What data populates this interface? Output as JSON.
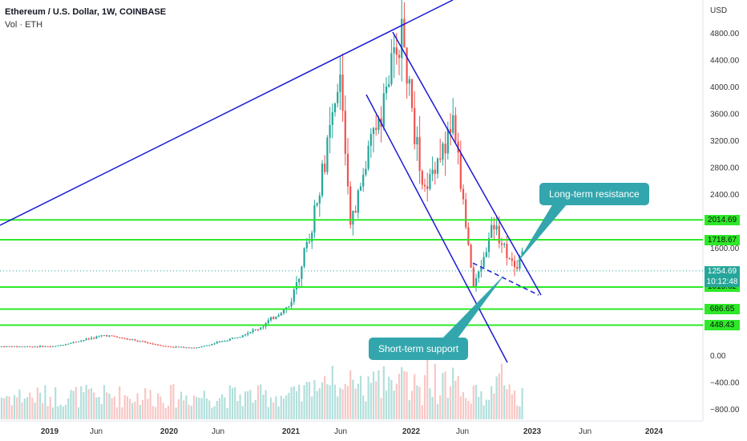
{
  "header": {
    "title": "Ethereum / U.S. Dollar, 1W, COINBASE",
    "volume_label": "Vol · ETH"
  },
  "price_scale": {
    "currency": "USD",
    "last_price": "1254.69",
    "countdown": "10:12:48"
  },
  "annotations": {
    "long_term_resistance": "Long-term resistance",
    "short_term_support": "Short-term support"
  },
  "colors": {
    "up": "#26a69a",
    "down": "#ef5350",
    "level_line": "#2ee829",
    "trendline": "#1a1ad6",
    "callout": "#33a6ad"
  },
  "chart_data": {
    "type": "candlestick",
    "title": "Ethereum / U.S. Dollar, 1W, COINBASE",
    "x_ticks": [
      "2019",
      "Jun",
      "2020",
      "Jun",
      "2021",
      "Jun",
      "2022",
      "Jun",
      "2023",
      "Jun",
      "2024"
    ],
    "y_ticks": [
      "4800.00",
      "4400.00",
      "4000.00",
      "3600.00",
      "3200.00",
      "2800.00",
      "2400.00",
      "1600.00",
      "0.00",
      "−400.00",
      "−800.00"
    ],
    "y_unit": "USD",
    "last_price": 1254.69,
    "horizontal_levels": [
      {
        "label": "2014.69",
        "value": 2014.69
      },
      {
        "label": "1718.67",
        "value": 1718.67
      },
      {
        "label": "1015.62",
        "value": 1015.62
      },
      {
        "label": "686.65",
        "value": 686.65
      },
      {
        "label": "448.43",
        "value": 448.43
      }
    ],
    "price_path": [
      {
        "date": "2019-01",
        "price": 130
      },
      {
        "date": "2019-06",
        "price": 300
      },
      {
        "date": "2019-12",
        "price": 130
      },
      {
        "date": "2020-03",
        "price": 110
      },
      {
        "date": "2020-06",
        "price": 230
      },
      {
        "date": "2020-09",
        "price": 400
      },
      {
        "date": "2020-12",
        "price": 740
      },
      {
        "date": "2021-02",
        "price": 1850
      },
      {
        "date": "2021-05",
        "price": 4100
      },
      {
        "date": "2021-06",
        "price": 1900
      },
      {
        "date": "2021-08",
        "price": 3200
      },
      {
        "date": "2021-11",
        "price": 4800
      },
      {
        "date": "2022-01",
        "price": 2400
      },
      {
        "date": "2022-04",
        "price": 3500
      },
      {
        "date": "2022-06",
        "price": 1000
      },
      {
        "date": "2022-08",
        "price": 1950
      },
      {
        "date": "2022-10",
        "price": 1300
      },
      {
        "date": "2022-11",
        "price": 1550
      },
      {
        "date": "2022-12",
        "price": 1254.69
      }
    ]
  }
}
